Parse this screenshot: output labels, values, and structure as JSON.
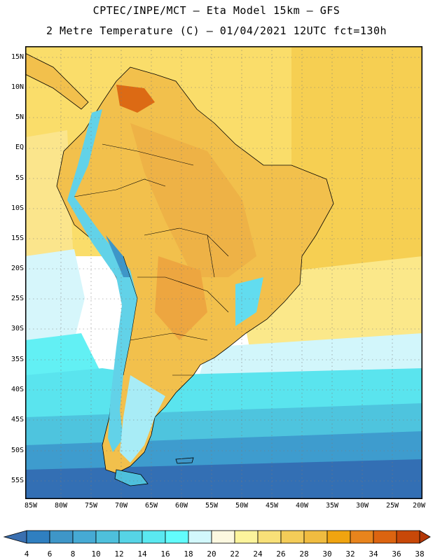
{
  "header": {
    "title_line1": "CPTEC/INPE/MCT –  Eta Model 15km – GFS",
    "title_line2": "2 Metre Temperature (C) – 01/04/2021 12UTC fct=130h"
  },
  "axes": {
    "lat_labels": [
      "15N",
      "10N",
      "5N",
      "EQ",
      "5S",
      "10S",
      "15S",
      "20S",
      "25S",
      "30S",
      "35S",
      "40S",
      "45S",
      "50S",
      "55S"
    ],
    "lon_labels": [
      "85W",
      "80W",
      "75W",
      "70W",
      "65W",
      "60W",
      "55W",
      "50W",
      "45W",
      "40W",
      "35W",
      "30W",
      "25W",
      "20W"
    ]
  },
  "colorbar": {
    "labels": [
      "4",
      "6",
      "8",
      "10",
      "12",
      "14",
      "16",
      "18",
      "20",
      "22",
      "24",
      "26",
      "28",
      "30",
      "32",
      "34",
      "36",
      "38"
    ],
    "colors": [
      "#3a6fb0",
      "#2f7fc0",
      "#3e96c8",
      "#46aad4",
      "#4ec0dc",
      "#56d4e6",
      "#5ae8f0",
      "#62fcfc",
      "#d2f8fc",
      "#fcf8e0",
      "#fcf49c",
      "#f8e078",
      "#f4cc58",
      "#f0bc40",
      "#f0a410",
      "#e8841c",
      "#dc6410",
      "#c84808",
      "#b43808"
    ]
  },
  "map": {
    "description_color_land_warm": "#f0b850",
    "ocean_base": "#fcdc64"
  }
}
